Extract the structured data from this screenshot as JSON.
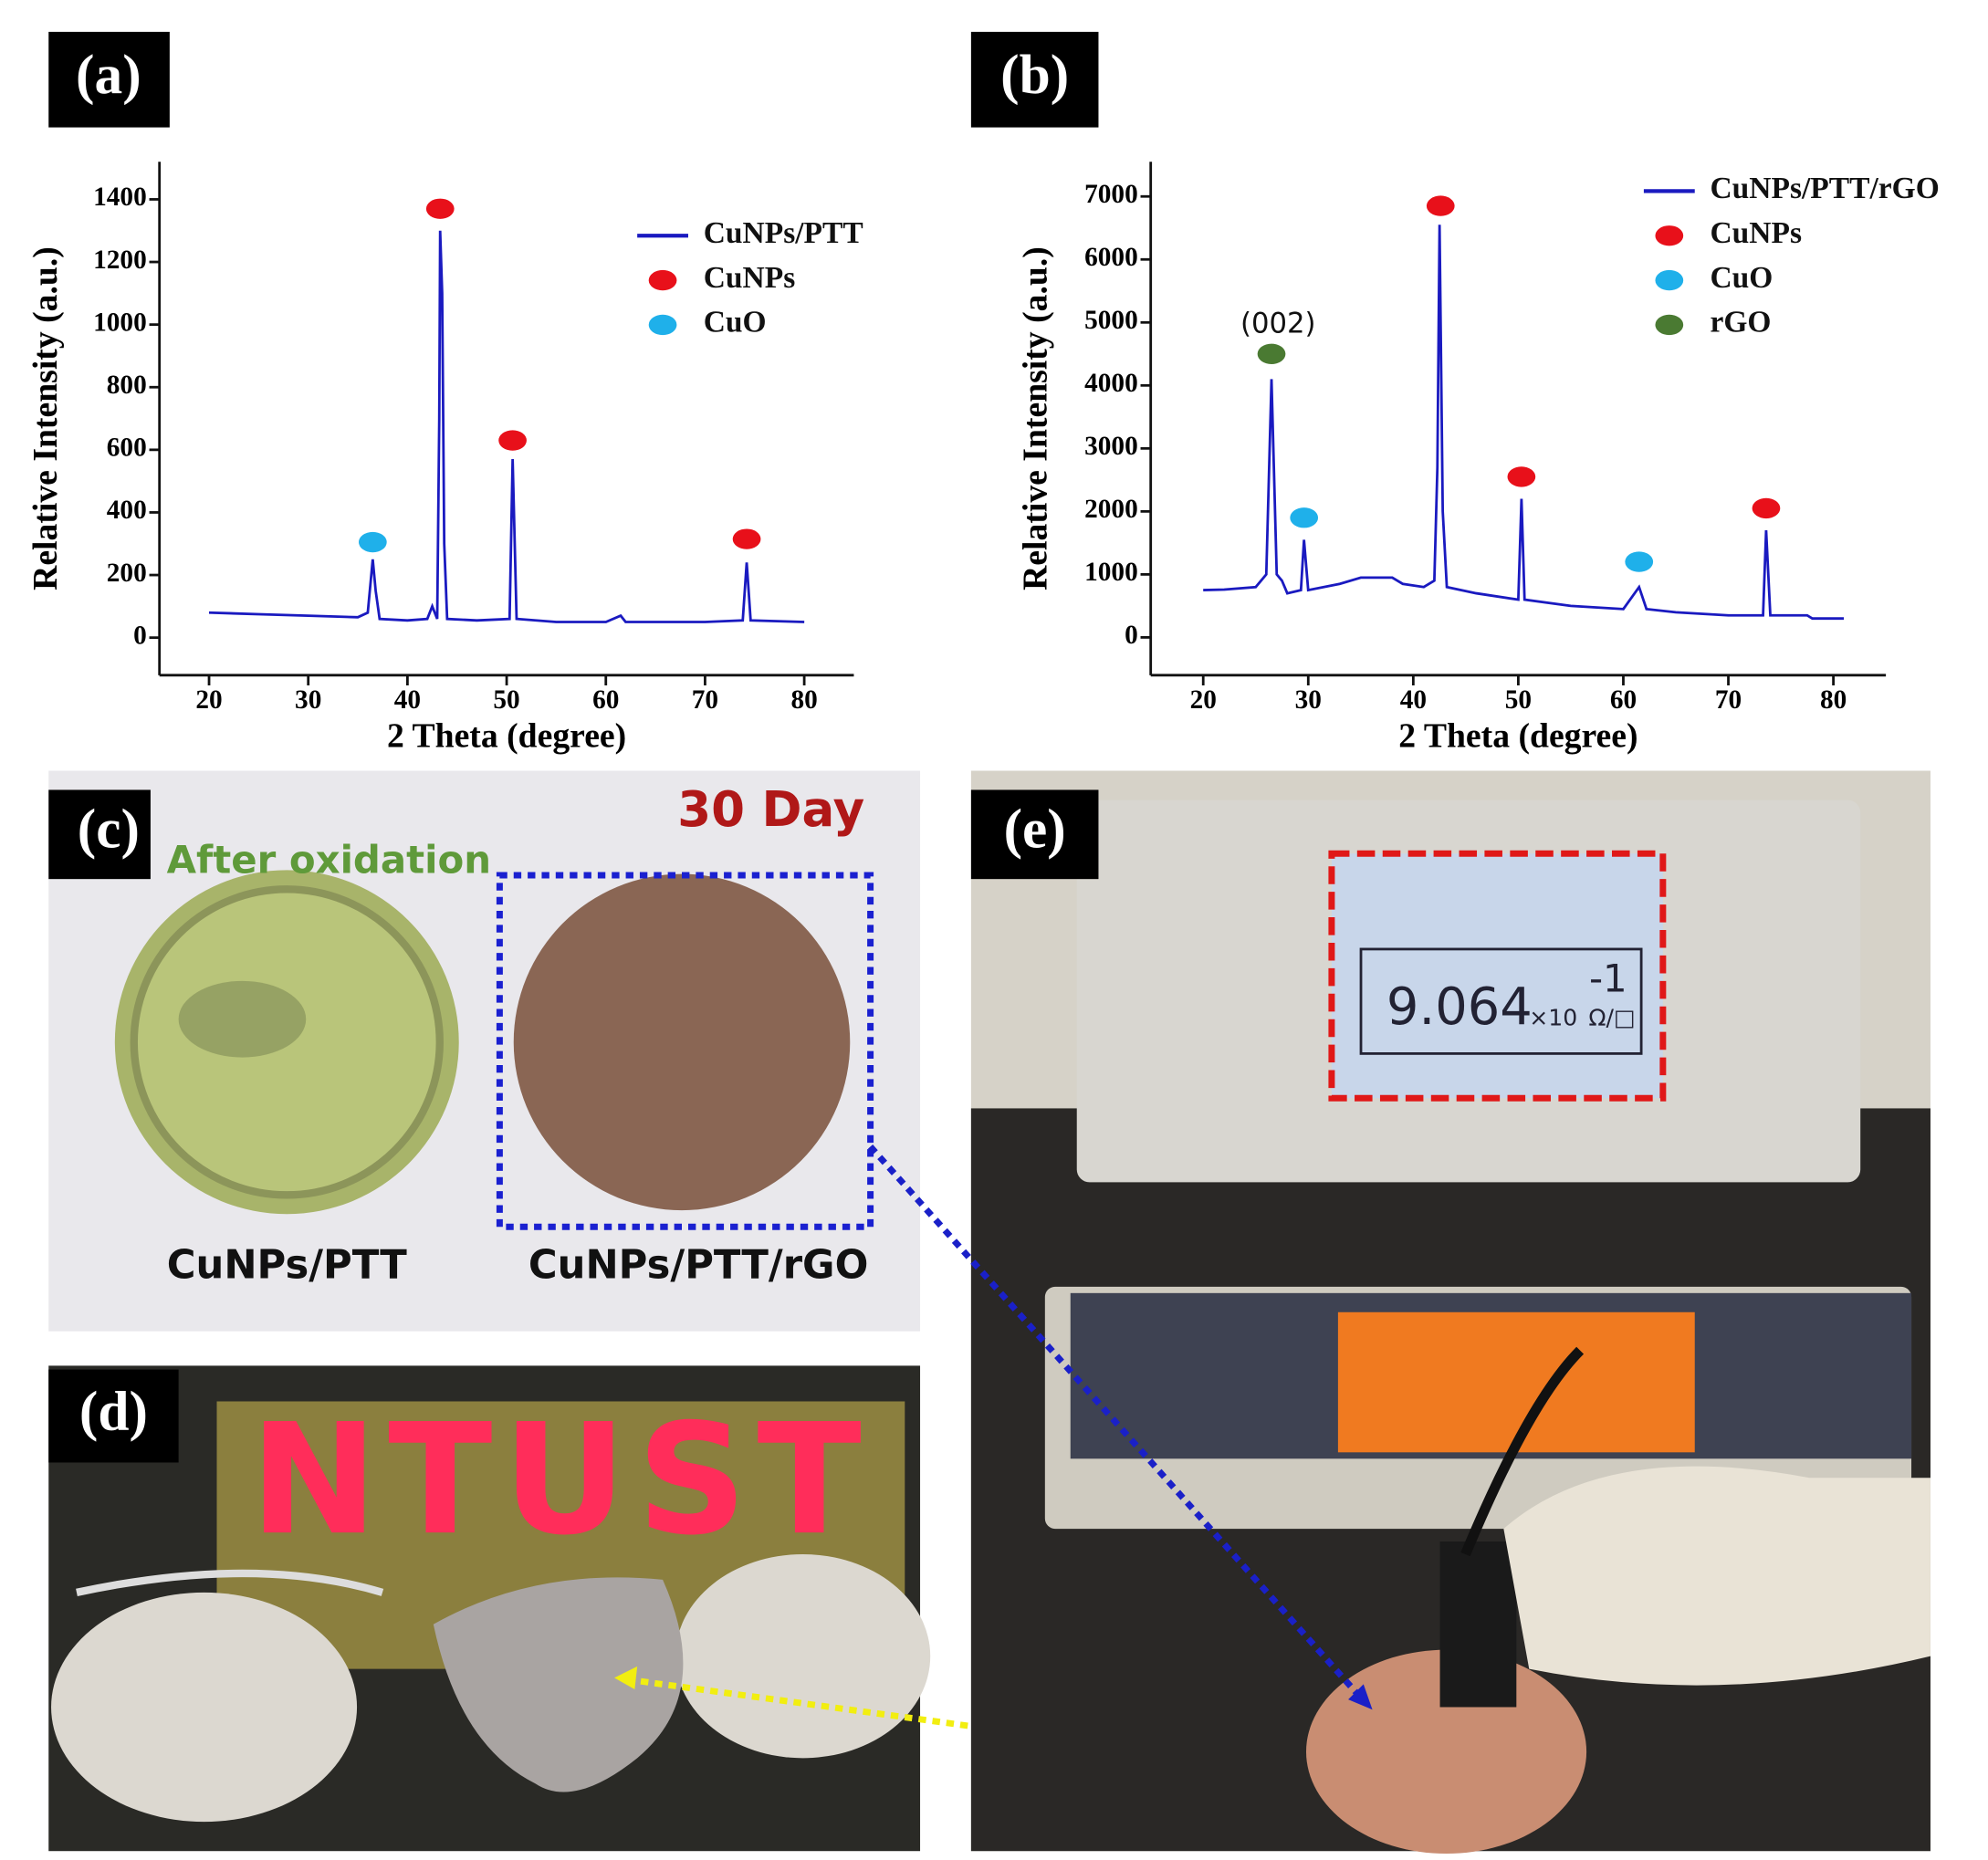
{
  "chart_data": [
    {
      "type": "line",
      "xlabel": "2 Theta (degree)",
      "ylabel": "Relative Intensity (a.u.)",
      "xlim": [
        15,
        85
      ],
      "ylim": [
        -120,
        1520
      ],
      "xticks": [
        20,
        30,
        40,
        50,
        60,
        70,
        80
      ],
      "yticks": [
        0,
        200,
        400,
        600,
        800,
        1000,
        1200,
        1400
      ],
      "series": [
        {
          "name": "CuNPs/PTT",
          "color": "#1a1ac0",
          "x": [
            20,
            25,
            30,
            35,
            36,
            36.5,
            36.8,
            37.2,
            40,
            42,
            42.5,
            43,
            43.2,
            43.3,
            43.5,
            43.7,
            44,
            47,
            50.3,
            50.6,
            51,
            55,
            60,
            61.5,
            62,
            70,
            73.8,
            74.2,
            74.6,
            80
          ],
          "values": [
            80,
            75,
            70,
            65,
            80,
            250,
            150,
            60,
            55,
            60,
            100,
            60,
            700,
            1300,
            1100,
            300,
            60,
            55,
            60,
            570,
            60,
            50,
            50,
            70,
            50,
            50,
            55,
            240,
            55,
            50
          ]
        },
        {
          "name": "CuNPs",
          "type": "scatter",
          "color": "#e8101a",
          "x": [
            43.3,
            50.6,
            74.2
          ],
          "values": [
            1370,
            630,
            315
          ]
        },
        {
          "name": "CuO",
          "type": "scatter",
          "color": "#1fb0ea",
          "x": [
            36.5
          ],
          "values": [
            305
          ]
        }
      ]
    },
    {
      "type": "line",
      "xlabel": "2 Theta (degree)",
      "ylabel": "Relative Intensity (a.u.)",
      "xlim": [
        15,
        85
      ],
      "ylim": [
        -600,
        7550
      ],
      "xticks": [
        20,
        30,
        40,
        50,
        60,
        70,
        80
      ],
      "yticks": [
        0,
        1000,
        2000,
        3000,
        4000,
        5000,
        6000,
        7000
      ],
      "annotations": [
        "(002)"
      ],
      "series": [
        {
          "name": "CuNPs/PTT/rGO",
          "color": "#1a1ac0",
          "x": [
            20,
            22,
            25,
            26,
            26.5,
            27,
            27.5,
            28,
            29.3,
            29.6,
            30,
            33,
            35,
            38,
            39,
            41,
            42,
            42.3,
            42.5,
            42.8,
            43.2,
            46,
            50,
            50.3,
            50.6,
            55,
            60,
            61.5,
            62.2,
            65,
            70,
            73.3,
            73.6,
            74,
            77.5,
            78,
            81
          ],
          "values": [
            750,
            760,
            800,
            1000,
            4100,
            1000,
            900,
            700,
            750,
            1550,
            750,
            850,
            950,
            950,
            850,
            800,
            900,
            2700,
            6550,
            2000,
            800,
            700,
            600,
            2200,
            600,
            500,
            450,
            800,
            450,
            400,
            350,
            350,
            1700,
            350,
            350,
            300,
            300
          ]
        },
        {
          "name": "CuNPs",
          "type": "scatter",
          "color": "#e8101a",
          "x": [
            42.6,
            50.3,
            73.6
          ],
          "values": [
            6850,
            2550,
            2050
          ]
        },
        {
          "name": "CuO",
          "type": "scatter",
          "color": "#1fb0ea",
          "x": [
            29.6,
            61.5
          ],
          "values": [
            1900,
            1200
          ]
        },
        {
          "name": "rGO",
          "type": "scatter",
          "color": "#4a7a32",
          "x": [
            26.5
          ],
          "values": [
            4500
          ]
        }
      ]
    }
  ],
  "panels": {
    "labels": [
      "(a)",
      "(b)",
      "(c)",
      "(d)",
      "(e)"
    ],
    "c": {
      "title": "30 Day",
      "note": "After oxidation",
      "captions": [
        "CuNPs/PTT",
        "CuNPs/PTT/rGO"
      ]
    },
    "d": {
      "sign": "NTUST"
    },
    "e": {
      "reading": "9.064",
      "unit": "×10",
      "exponent": "-1",
      "ohm": "Ω/□"
    }
  }
}
